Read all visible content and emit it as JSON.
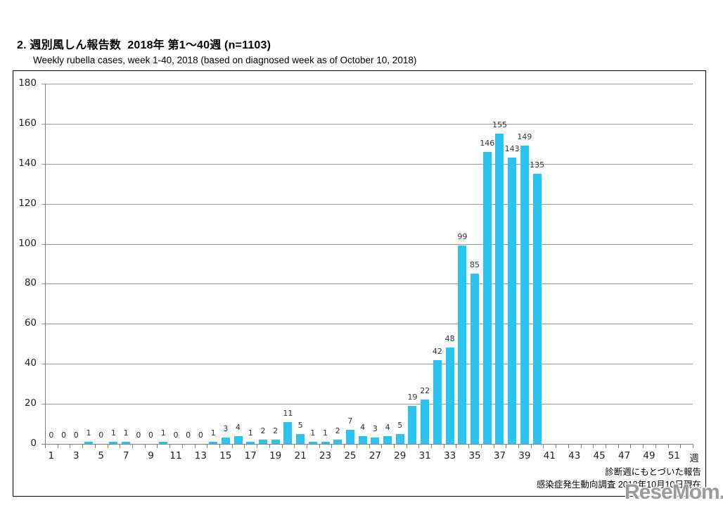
{
  "header": {
    "title": "2. 週別風しん報告数  2018年 第1〜40週 (n=1103)",
    "subtitle": "Weekly rubella cases, week 1-40, 2018 (based on diagnosed week as of October 10, 2018)"
  },
  "chart_data": {
    "type": "bar",
    "title": "週別風しん報告数 2018年 第1〜40週",
    "n_total": 1103,
    "xlabel": "週",
    "ylabel": "",
    "weeks": [
      1,
      2,
      3,
      4,
      5,
      6,
      7,
      8,
      9,
      10,
      11,
      12,
      13,
      14,
      15,
      16,
      17,
      18,
      19,
      20,
      21,
      22,
      23,
      24,
      25,
      26,
      27,
      28,
      29,
      30,
      31,
      32,
      33,
      34,
      35,
      36,
      37,
      38,
      39,
      40
    ],
    "values": [
      0,
      0,
      0,
      1,
      0,
      1,
      1,
      0,
      0,
      1,
      0,
      0,
      0,
      1,
      3,
      4,
      1,
      2,
      2,
      11,
      5,
      1,
      1,
      2,
      7,
      4,
      3,
      4,
      5,
      19,
      22,
      42,
      48,
      99,
      85,
      146,
      155,
      143,
      149,
      135
    ],
    "ylim": [
      0,
      180
    ],
    "y_ticks": [
      0,
      20,
      40,
      60,
      80,
      100,
      120,
      140,
      160,
      180
    ],
    "x_tick_labels": [
      "1",
      "3",
      "5",
      "7",
      "9",
      "11",
      "13",
      "15",
      "17",
      "19",
      "21",
      "23",
      "25",
      "27",
      "29",
      "31",
      "33",
      "35",
      "37",
      "39",
      "41",
      "43",
      "45",
      "47",
      "49",
      "51"
    ],
    "x_axis_weeks_shown": 52,
    "grid": "horizontal",
    "legend": "none",
    "bar_color": "#29C5F0",
    "show_value_labels": true,
    "notes": [
      "診断週にもとづいた報告",
      "感染症発生動向調査 2018年10月10日現在"
    ]
  },
  "watermark": {
    "text": "ReseMom."
  }
}
